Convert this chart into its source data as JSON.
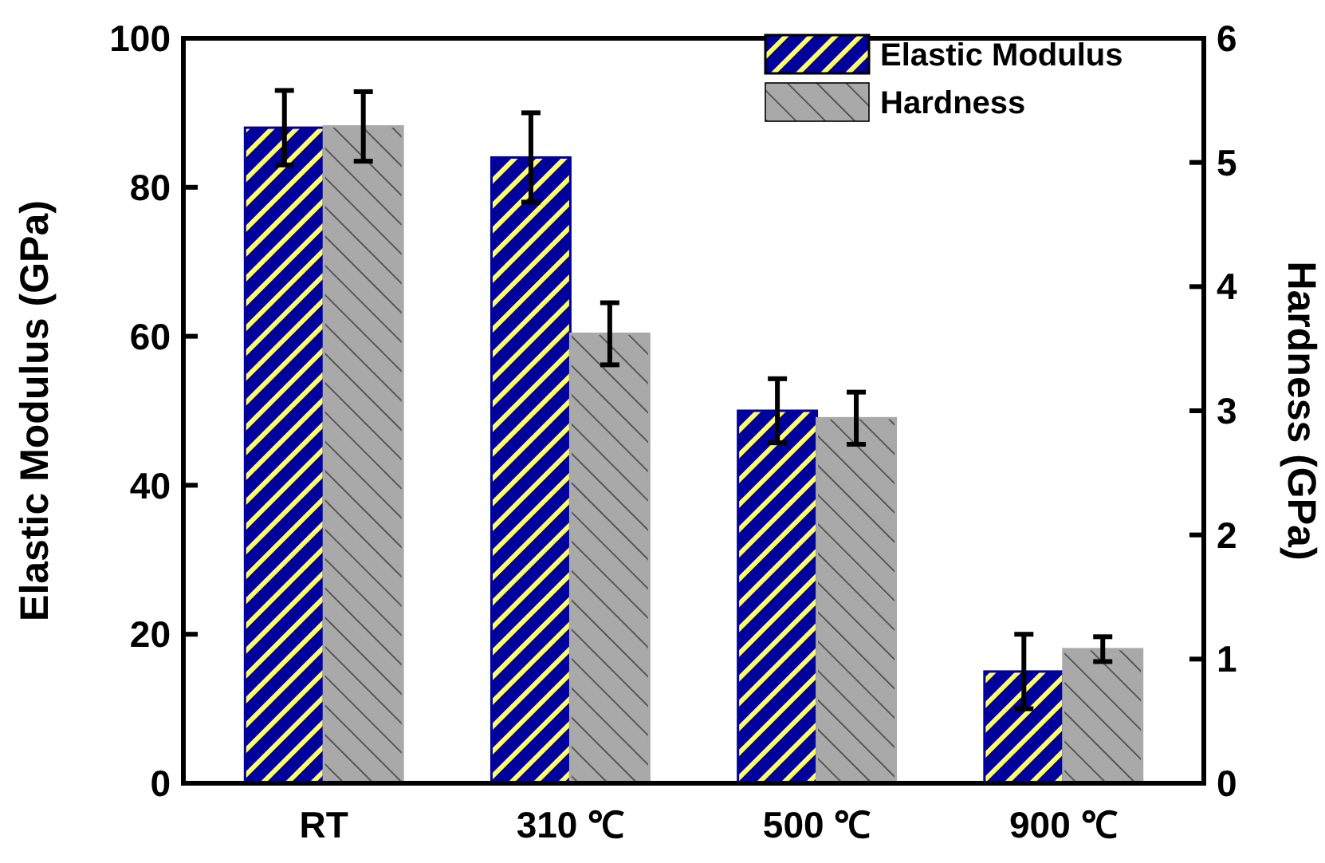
{
  "chart_data": {
    "type": "bar",
    "xlabel": null,
    "ylabel": "Elastic Modulus (GPa)",
    "y2label": "Hardness (GPa)",
    "categories": [
      "RT",
      "310 ℃",
      "500 ℃",
      "900 ℃"
    ],
    "ylim": [
      0,
      100
    ],
    "yticks": [
      0,
      20,
      40,
      60,
      80,
      100
    ],
    "y2lim": [
      0,
      6
    ],
    "y2ticks": [
      0,
      1,
      2,
      3,
      4,
      5,
      6
    ],
    "legend": "top right",
    "series": [
      {
        "name": "Elastic Modulus",
        "color": "#00009c",
        "values": [
          88,
          84,
          50,
          15
        ],
        "errors": [
          5,
          6,
          4.3,
          5
        ]
      },
      {
        "name": "Hardness",
        "color": "#a9a9a9",
        "axis": "y2",
        "values": [
          5.29,
          3.62,
          2.94,
          1.08
        ],
        "errors": [
          0.28,
          0.25,
          0.21,
          0.1
        ]
      }
    ]
  }
}
